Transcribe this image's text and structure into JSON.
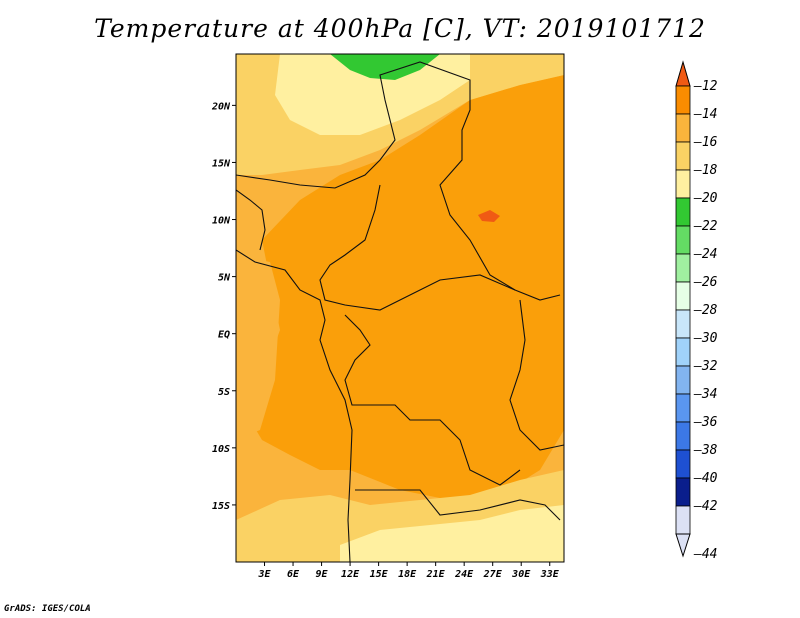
{
  "title": "Temperature at 400hPa [C], VT: 2019101712",
  "credit": "GrADS: IGES/COLA",
  "map": {
    "lon_range": [
      0,
      34.5
    ],
    "lat_range": [
      -20,
      24.5
    ],
    "x_ticks": [
      "3E",
      "6E",
      "9E",
      "12E",
      "15E",
      "18E",
      "21E",
      "24E",
      "27E",
      "30E",
      "33E"
    ],
    "y_ticks": [
      "20N",
      "15N",
      "10N",
      "5N",
      "EQ",
      "5S",
      "10S",
      "15S"
    ],
    "background_color": "#fab43c"
  },
  "colorbar": {
    "labels": [
      "-12",
      "-14",
      "-16",
      "-18",
      "-20",
      "-22",
      "-24",
      "-26",
      "-28",
      "-30",
      "-32",
      "-34",
      "-36",
      "-38",
      "-40",
      "-42",
      "-44"
    ],
    "colors": [
      "#f05a14",
      "#fa8c00",
      "#fab43c",
      "#fad264",
      "#fff0a0",
      "#32c832",
      "#64dc64",
      "#a0f0a0",
      "#e6ffe6",
      "#c8e6fa",
      "#a0d2fa",
      "#82b4f0",
      "#5a96f0",
      "#3c78e6",
      "#1e50d2",
      "#0a1e8c",
      "#dce1f5"
    ]
  }
}
